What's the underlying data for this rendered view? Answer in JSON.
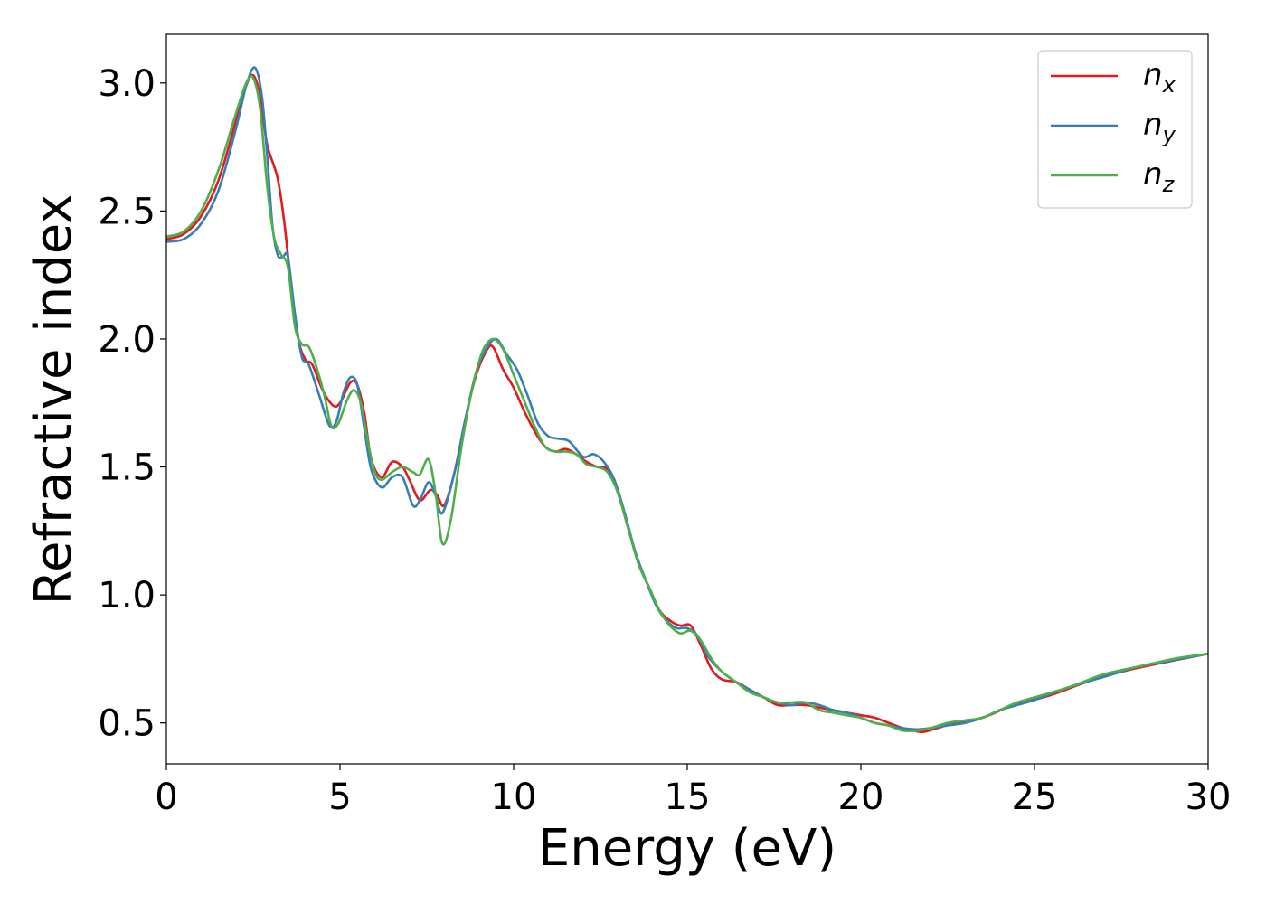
{
  "chart_data": {
    "type": "line",
    "xlabel": "Energy (eV)",
    "ylabel": "Refractive index",
    "xlim": [
      0,
      30
    ],
    "ylim": [
      0.34,
      3.19
    ],
    "xticks": [
      0,
      5,
      10,
      15,
      20,
      25,
      30
    ],
    "yticks": [
      0.5,
      1.0,
      1.5,
      2.0,
      2.5,
      3.0
    ],
    "xtick_labels": [
      "0",
      "5",
      "10",
      "15",
      "20",
      "25",
      "30"
    ],
    "ytick_labels": [
      "0.5",
      "1.0",
      "1.5",
      "2.0",
      "2.5",
      "3.0"
    ],
    "grid": false,
    "legend_position": "top-right",
    "series": [
      {
        "name": "n_x",
        "label_main": "n",
        "label_sub": "x",
        "color": "#e41a1c",
        "points": [
          [
            0,
            2.39
          ],
          [
            0.5,
            2.41
          ],
          [
            1.0,
            2.48
          ],
          [
            1.5,
            2.62
          ],
          [
            2.0,
            2.85
          ],
          [
            2.3,
            2.99
          ],
          [
            2.5,
            3.03
          ],
          [
            2.7,
            2.95
          ],
          [
            2.9,
            2.76
          ],
          [
            3.2,
            2.63
          ],
          [
            3.4,
            2.45
          ],
          [
            3.6,
            2.2
          ],
          [
            3.8,
            2.0
          ],
          [
            4.0,
            1.92
          ],
          [
            4.2,
            1.9
          ],
          [
            4.5,
            1.8
          ],
          [
            4.8,
            1.74
          ],
          [
            5.0,
            1.75
          ],
          [
            5.3,
            1.83
          ],
          [
            5.5,
            1.82
          ],
          [
            5.7,
            1.71
          ],
          [
            5.9,
            1.53
          ],
          [
            6.2,
            1.46
          ],
          [
            6.5,
            1.52
          ],
          [
            6.8,
            1.5
          ],
          [
            7.0,
            1.45
          ],
          [
            7.3,
            1.37
          ],
          [
            7.6,
            1.41
          ],
          [
            7.8,
            1.39
          ],
          [
            8.0,
            1.35
          ],
          [
            8.3,
            1.48
          ],
          [
            8.6,
            1.68
          ],
          [
            8.9,
            1.85
          ],
          [
            9.2,
            1.95
          ],
          [
            9.4,
            1.97
          ],
          [
            9.7,
            1.88
          ],
          [
            10.0,
            1.81
          ],
          [
            10.3,
            1.72
          ],
          [
            10.6,
            1.64
          ],
          [
            10.9,
            1.58
          ],
          [
            11.2,
            1.56
          ],
          [
            11.5,
            1.57
          ],
          [
            11.8,
            1.55
          ],
          [
            12.1,
            1.52
          ],
          [
            12.4,
            1.5
          ],
          [
            12.7,
            1.49
          ],
          [
            13.0,
            1.4
          ],
          [
            13.3,
            1.26
          ],
          [
            13.6,
            1.12
          ],
          [
            13.9,
            1.03
          ],
          [
            14.2,
            0.94
          ],
          [
            14.5,
            0.9
          ],
          [
            14.8,
            0.88
          ],
          [
            15.1,
            0.88
          ],
          [
            15.4,
            0.8
          ],
          [
            15.7,
            0.71
          ],
          [
            16.0,
            0.67
          ],
          [
            16.4,
            0.66
          ],
          [
            16.8,
            0.63
          ],
          [
            17.2,
            0.6
          ],
          [
            17.6,
            0.57
          ],
          [
            18.0,
            0.57
          ],
          [
            18.4,
            0.57
          ],
          [
            18.8,
            0.56
          ],
          [
            19.2,
            0.55
          ],
          [
            19.6,
            0.54
          ],
          [
            20.0,
            0.53
          ],
          [
            20.4,
            0.52
          ],
          [
            20.8,
            0.5
          ],
          [
            21.2,
            0.48
          ],
          [
            21.5,
            0.47
          ],
          [
            21.8,
            0.465
          ],
          [
            22.2,
            0.48
          ],
          [
            22.7,
            0.5
          ],
          [
            23.2,
            0.51
          ],
          [
            23.7,
            0.53
          ],
          [
            24.2,
            0.56
          ],
          [
            24.7,
            0.58
          ],
          [
            25.5,
            0.61
          ],
          [
            26.5,
            0.66
          ],
          [
            27.5,
            0.7
          ],
          [
            28.5,
            0.73
          ],
          [
            30.0,
            0.77
          ]
        ]
      },
      {
        "name": "n_y",
        "label_main": "n",
        "label_sub": "y",
        "color": "#377eb8",
        "points": [
          [
            0,
            2.38
          ],
          [
            0.5,
            2.39
          ],
          [
            1.0,
            2.45
          ],
          [
            1.5,
            2.58
          ],
          [
            2.0,
            2.82
          ],
          [
            2.3,
            2.99
          ],
          [
            2.55,
            3.06
          ],
          [
            2.75,
            2.95
          ],
          [
            2.9,
            2.72
          ],
          [
            3.05,
            2.45
          ],
          [
            3.2,
            2.33
          ],
          [
            3.35,
            2.32
          ],
          [
            3.5,
            2.32
          ],
          [
            3.7,
            2.1
          ],
          [
            3.9,
            1.93
          ],
          [
            4.1,
            1.9
          ],
          [
            4.4,
            1.78
          ],
          [
            4.7,
            1.66
          ],
          [
            4.9,
            1.68
          ],
          [
            5.1,
            1.79
          ],
          [
            5.3,
            1.85
          ],
          [
            5.5,
            1.82
          ],
          [
            5.7,
            1.65
          ],
          [
            5.9,
            1.49
          ],
          [
            6.2,
            1.42
          ],
          [
            6.5,
            1.46
          ],
          [
            6.8,
            1.46
          ],
          [
            7.1,
            1.35
          ],
          [
            7.3,
            1.37
          ],
          [
            7.55,
            1.44
          ],
          [
            7.75,
            1.39
          ],
          [
            7.95,
            1.32
          ],
          [
            8.3,
            1.48
          ],
          [
            8.6,
            1.68
          ],
          [
            8.9,
            1.86
          ],
          [
            9.2,
            1.96
          ],
          [
            9.5,
            2.0
          ],
          [
            9.8,
            1.94
          ],
          [
            10.1,
            1.88
          ],
          [
            10.4,
            1.78
          ],
          [
            10.7,
            1.67
          ],
          [
            11.0,
            1.62
          ],
          [
            11.3,
            1.61
          ],
          [
            11.6,
            1.6
          ],
          [
            12.0,
            1.54
          ],
          [
            12.3,
            1.55
          ],
          [
            12.6,
            1.52
          ],
          [
            12.9,
            1.45
          ],
          [
            13.2,
            1.32
          ],
          [
            13.5,
            1.17
          ],
          [
            13.8,
            1.06
          ],
          [
            14.1,
            0.96
          ],
          [
            14.4,
            0.9
          ],
          [
            14.7,
            0.87
          ],
          [
            15.0,
            0.87
          ],
          [
            15.3,
            0.84
          ],
          [
            15.6,
            0.76
          ],
          [
            16.0,
            0.7
          ],
          [
            16.4,
            0.66
          ],
          [
            16.8,
            0.63
          ],
          [
            17.2,
            0.6
          ],
          [
            17.6,
            0.58
          ],
          [
            18.0,
            0.57
          ],
          [
            18.4,
            0.58
          ],
          [
            18.8,
            0.57
          ],
          [
            19.2,
            0.55
          ],
          [
            19.6,
            0.54
          ],
          [
            20.0,
            0.52
          ],
          [
            20.4,
            0.5
          ],
          [
            20.8,
            0.49
          ],
          [
            21.2,
            0.48
          ],
          [
            21.6,
            0.475
          ],
          [
            22.0,
            0.48
          ],
          [
            22.5,
            0.49
          ],
          [
            23.0,
            0.5
          ],
          [
            23.5,
            0.52
          ],
          [
            24.0,
            0.55
          ],
          [
            24.5,
            0.57
          ],
          [
            25.0,
            0.59
          ],
          [
            26.0,
            0.64
          ],
          [
            27.0,
            0.68
          ],
          [
            28.0,
            0.72
          ],
          [
            29.0,
            0.745
          ],
          [
            30.0,
            0.77
          ]
        ]
      },
      {
        "name": "n_z",
        "label_main": "n",
        "label_sub": "z",
        "color": "#4daf4a",
        "points": [
          [
            0,
            2.4
          ],
          [
            0.5,
            2.42
          ],
          [
            1.0,
            2.5
          ],
          [
            1.5,
            2.66
          ],
          [
            2.0,
            2.88
          ],
          [
            2.3,
            3.0
          ],
          [
            2.5,
            3.02
          ],
          [
            2.7,
            2.9
          ],
          [
            2.9,
            2.6
          ],
          [
            3.1,
            2.4
          ],
          [
            3.3,
            2.33
          ],
          [
            3.5,
            2.28
          ],
          [
            3.7,
            2.05
          ],
          [
            3.9,
            1.98
          ],
          [
            4.1,
            1.97
          ],
          [
            4.3,
            1.9
          ],
          [
            4.55,
            1.78
          ],
          [
            4.75,
            1.66
          ],
          [
            4.95,
            1.67
          ],
          [
            5.2,
            1.76
          ],
          [
            5.4,
            1.8
          ],
          [
            5.6,
            1.75
          ],
          [
            5.8,
            1.6
          ],
          [
            6.0,
            1.48
          ],
          [
            6.2,
            1.45
          ],
          [
            6.5,
            1.48
          ],
          [
            6.8,
            1.5
          ],
          [
            7.1,
            1.48
          ],
          [
            7.3,
            1.47
          ],
          [
            7.55,
            1.53
          ],
          [
            7.75,
            1.4
          ],
          [
            7.95,
            1.2
          ],
          [
            8.2,
            1.3
          ],
          [
            8.5,
            1.58
          ],
          [
            8.8,
            1.8
          ],
          [
            9.1,
            1.95
          ],
          [
            9.4,
            2.0
          ],
          [
            9.7,
            1.96
          ],
          [
            10.0,
            1.86
          ],
          [
            10.3,
            1.76
          ],
          [
            10.6,
            1.66
          ],
          [
            10.9,
            1.58
          ],
          [
            11.2,
            1.56
          ],
          [
            11.5,
            1.56
          ],
          [
            11.8,
            1.55
          ],
          [
            12.1,
            1.51
          ],
          [
            12.4,
            1.5
          ],
          [
            12.7,
            1.48
          ],
          [
            13.0,
            1.4
          ],
          [
            13.3,
            1.26
          ],
          [
            13.6,
            1.12
          ],
          [
            13.9,
            1.03
          ],
          [
            14.2,
            0.94
          ],
          [
            14.5,
            0.88
          ],
          [
            14.8,
            0.85
          ],
          [
            15.1,
            0.86
          ],
          [
            15.4,
            0.82
          ],
          [
            15.7,
            0.75
          ],
          [
            16.0,
            0.7
          ],
          [
            16.4,
            0.66
          ],
          [
            16.8,
            0.62
          ],
          [
            17.2,
            0.6
          ],
          [
            17.6,
            0.58
          ],
          [
            18.0,
            0.58
          ],
          [
            18.4,
            0.58
          ],
          [
            18.8,
            0.55
          ],
          [
            19.2,
            0.54
          ],
          [
            19.6,
            0.53
          ],
          [
            20.0,
            0.52
          ],
          [
            20.4,
            0.5
          ],
          [
            20.8,
            0.49
          ],
          [
            21.2,
            0.47
          ],
          [
            21.6,
            0.47
          ],
          [
            22.0,
            0.48
          ],
          [
            22.5,
            0.5
          ],
          [
            23.0,
            0.51
          ],
          [
            23.5,
            0.52
          ],
          [
            24.0,
            0.55
          ],
          [
            24.5,
            0.58
          ],
          [
            25.0,
            0.6
          ],
          [
            26.0,
            0.64
          ],
          [
            27.0,
            0.69
          ],
          [
            28.0,
            0.72
          ],
          [
            29.0,
            0.75
          ],
          [
            30.0,
            0.77
          ]
        ]
      }
    ]
  }
}
